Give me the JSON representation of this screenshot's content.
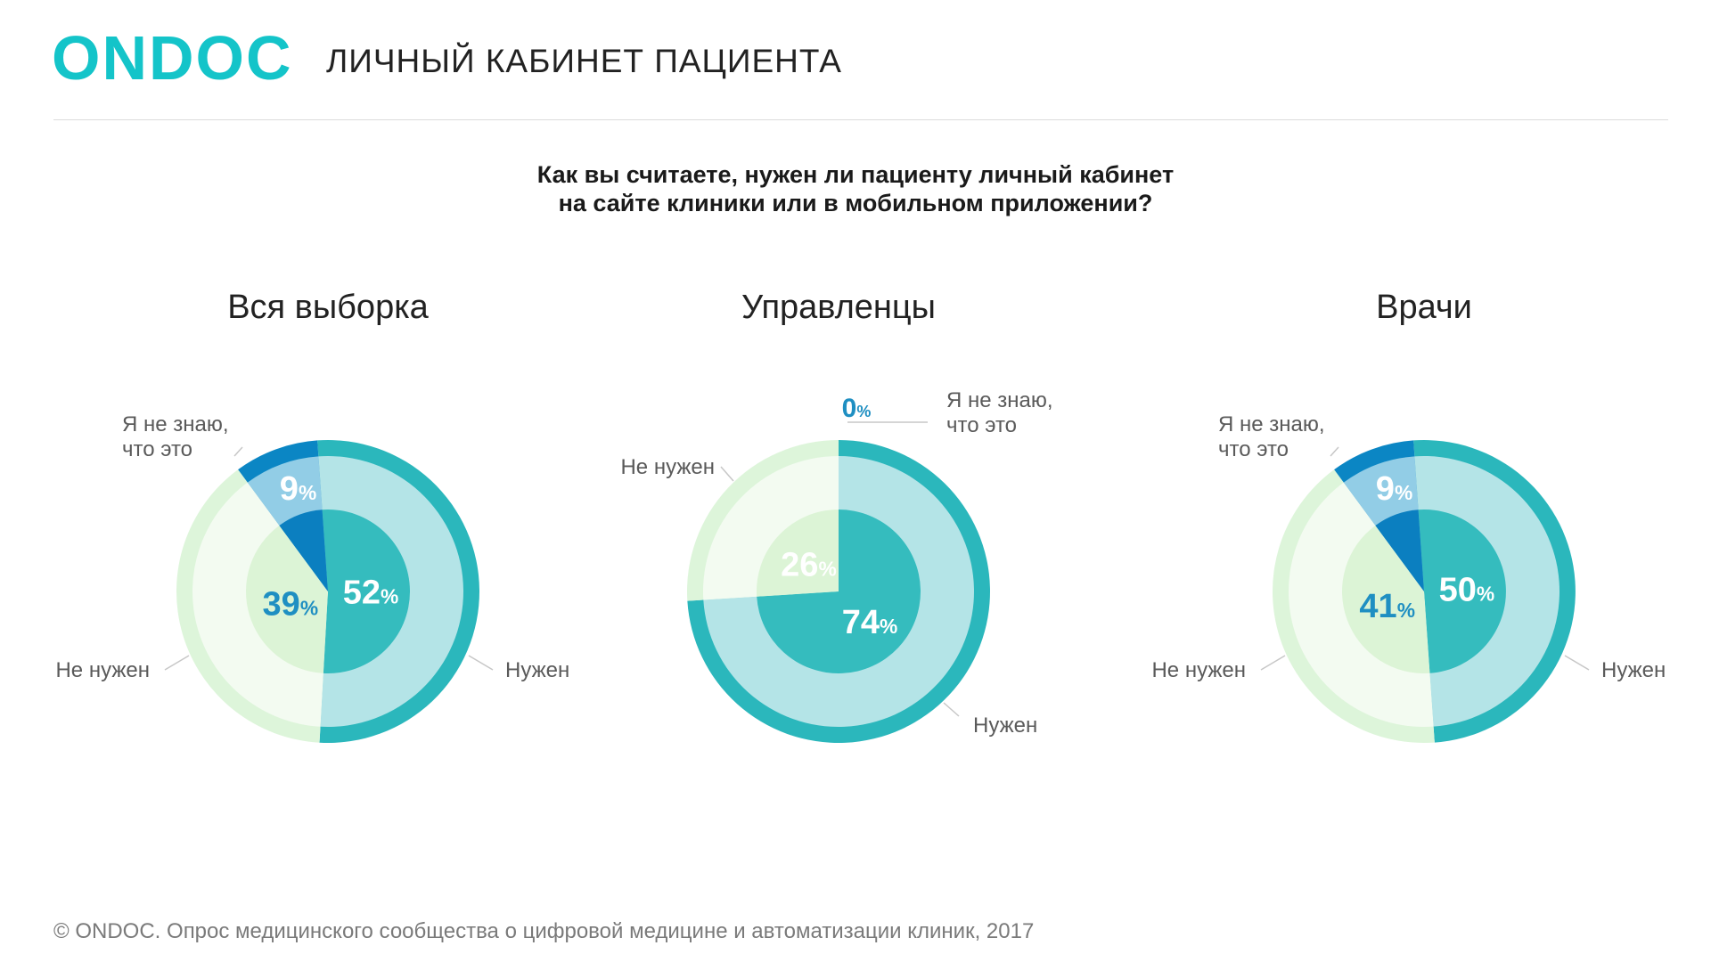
{
  "header": {
    "logo": "ONDOC",
    "title": "ЛИЧНЫЙ КАБИНЕТ ПАЦИЕНТА"
  },
  "question": {
    "line1": "Как вы считаете, нужен ли пациенту личный кабинет",
    "line2": "на сайте клиники или в мобильном приложении?"
  },
  "footnote": "© ONDOC. Опрос медицинского сообщества о цифровой медицине и автоматизации клиник, 2017",
  "colors": {
    "needed_outer": "#2bb7bc",
    "needed_mid": "#b4e4e7",
    "needed_inner": "#35bcbe",
    "not_needed_outer": "#ddf5da",
    "not_needed_mid": "#f3fbf1",
    "not_needed_inner": "#dcf4d6",
    "dont_know_outer": "#0b86c4",
    "dont_know_mid": "#92cde6",
    "dont_know_inner": "#0b7fc0",
    "label_white": "#ffffff",
    "label_green": "#1f8fc2"
  },
  "chart_data": [
    {
      "type": "pie",
      "title": "Вся выборка",
      "slices": [
        {
          "key": "needed",
          "label": "Нужен",
          "value": 52
        },
        {
          "key": "not_needed",
          "label": "Не нужен",
          "value": 39
        },
        {
          "key": "dont_know",
          "label": "Я не знаю, что это",
          "value": 9
        }
      ],
      "legend_labels": {
        "needed": "Нужен",
        "not_needed": "Не нужен",
        "dont_know_1": "Я не знаю,",
        "dont_know_2": "что это"
      }
    },
    {
      "type": "pie",
      "title": "Управленцы",
      "slices": [
        {
          "key": "needed",
          "label": "Нужен",
          "value": 74
        },
        {
          "key": "not_needed",
          "label": "Не нужен",
          "value": 26
        },
        {
          "key": "dont_know",
          "label": "Я не знаю, что это",
          "value": 0
        }
      ],
      "legend_labels": {
        "needed": "Нужен",
        "not_needed": "Не нужен",
        "dont_know_1": "Я не знаю,",
        "dont_know_2": "что это"
      }
    },
    {
      "type": "pie",
      "title": "Врачи",
      "slices": [
        {
          "key": "needed",
          "label": "Нужен",
          "value": 50
        },
        {
          "key": "not_needed",
          "label": "Не нужен",
          "value": 41
        },
        {
          "key": "dont_know",
          "label": "Я не знаю, что это",
          "value": 9
        }
      ],
      "legend_labels": {
        "needed": "Нужен",
        "not_needed": "Не нужен",
        "dont_know_1": "Я не знаю,",
        "dont_know_2": "что это"
      }
    }
  ]
}
